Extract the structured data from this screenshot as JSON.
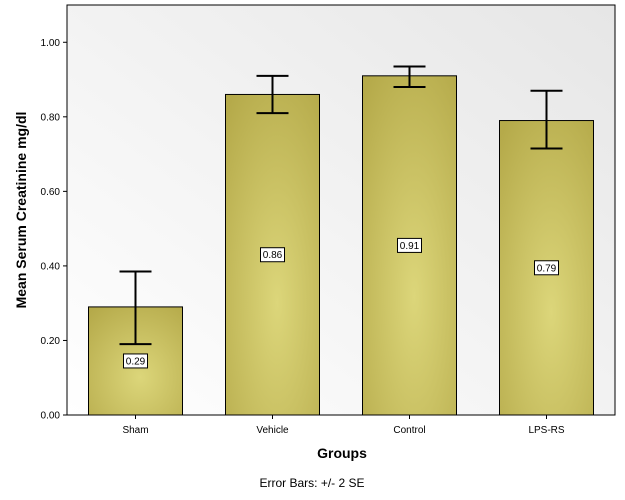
{
  "chart_data": {
    "type": "bar",
    "categories": [
      "Sham",
      "Vehicle",
      "Control",
      "LPS-RS"
    ],
    "values": [
      0.29,
      0.86,
      0.91,
      0.79
    ],
    "data_labels": [
      "0.29",
      "0.86",
      "0.91",
      "0.79"
    ],
    "error_bars": [
      {
        "low": 0.19,
        "high": 0.385
      },
      {
        "low": 0.81,
        "high": 0.91
      },
      {
        "low": 0.88,
        "high": 0.935
      },
      {
        "low": 0.715,
        "high": 0.87
      }
    ],
    "xlabel": "Groups",
    "ylabel": "Mean Serum Creatinine mg/dl",
    "ylim": [
      0,
      1.1
    ],
    "yticks": [
      0.0,
      0.2,
      0.4,
      0.6,
      0.8,
      1.0
    ],
    "ytick_labels": [
      "0.00",
      "0.20",
      "0.40",
      "0.60",
      "0.80",
      "1.00"
    ],
    "footnote": "Error Bars: +/- 2 SE",
    "grid": false,
    "colors": {
      "bar_dark": "#b5aa4a",
      "bar_light": "#dcd67a",
      "plot_bg_light": "#ffffff",
      "plot_bg_dark": "#e6e6e6"
    }
  }
}
